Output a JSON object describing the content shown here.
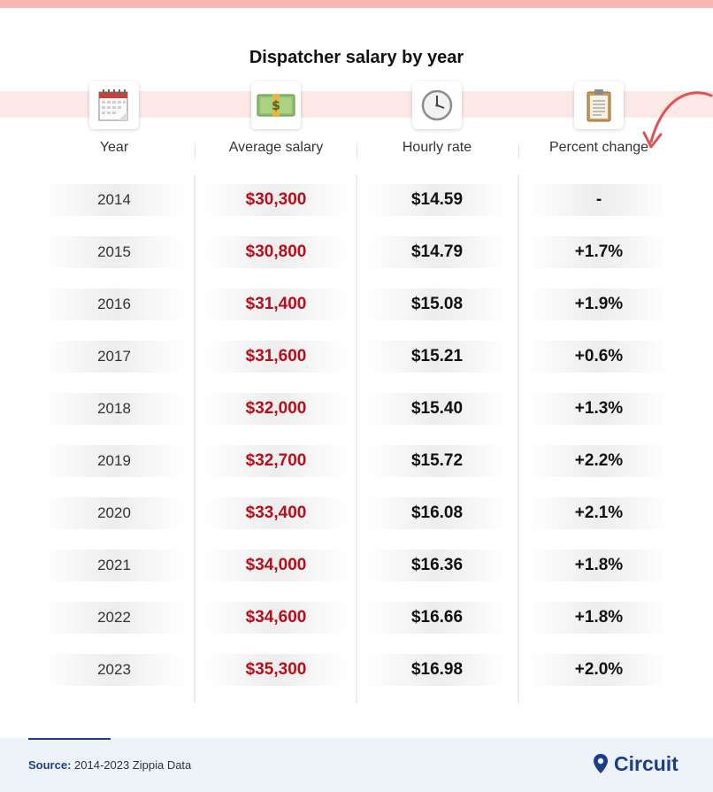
{
  "title": "Dispatcher salary by year",
  "columns": [
    {
      "label": "Year",
      "icon": "calendar-icon"
    },
    {
      "label": "Average salary",
      "icon": "money-icon"
    },
    {
      "label": "Hourly rate",
      "icon": "clock-icon"
    },
    {
      "label": "Percent change",
      "icon": "clipboard-icon"
    }
  ],
  "colors": {
    "salary": "#b80d1a",
    "accent_band": "#fde8e8",
    "top_bar": "#f7b5b5",
    "brand": "#1b3e8a",
    "arrow": "#e05252"
  },
  "chart_data": {
    "type": "table",
    "title": "Dispatcher salary by year",
    "columns": [
      "Year",
      "Average salary",
      "Hourly rate",
      "Percent change"
    ],
    "rows": [
      [
        "2014",
        "$30,300",
        "$14.59",
        "-"
      ],
      [
        "2015",
        "$30,800",
        "$14.79",
        "+1.7%"
      ],
      [
        "2016",
        "$31,400",
        "$15.08",
        "+1.9%"
      ],
      [
        "2017",
        "$31,600",
        "$15.21",
        "+0.6%"
      ],
      [
        "2018",
        "$32,000",
        "$15.40",
        "+1.3%"
      ],
      [
        "2019",
        "$32,700",
        "$15.72",
        "+2.2%"
      ],
      [
        "2020",
        "$33,400",
        "$16.08",
        "+2.1%"
      ],
      [
        "2021",
        "$34,000",
        "$16.36",
        "+1.8%"
      ],
      [
        "2022",
        "$34,600",
        "$16.66",
        "+1.8%"
      ],
      [
        "2023",
        "$35,300",
        "$16.98",
        "+2.0%"
      ]
    ]
  },
  "footer": {
    "source_label": "Source:",
    "source_text": " 2014-2023 Zippia Data",
    "brand": "Circuit",
    "brand_icon": "location-pin-icon"
  }
}
